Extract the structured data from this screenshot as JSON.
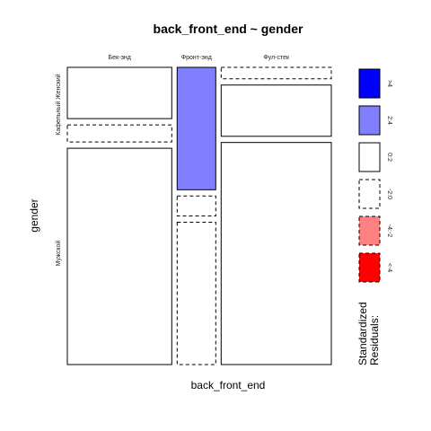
{
  "chart_data": {
    "type": "mosaic",
    "title": "back_front_end ~ gender",
    "xlabel": "back_front_end",
    "ylabel": "gender",
    "columns": [
      {
        "label": "Бек-энд",
        "proportion": 0.365
      },
      {
        "label": "Фронт-энд",
        "proportion": 0.135
      },
      {
        "label": "Фул-стек",
        "proportion": 0.385
      }
    ],
    "rows": [
      {
        "label": "Кафельный Женский"
      },
      {
        "label": "Мужской"
      }
    ],
    "cells": [
      [
        {
          "proportion": 0.18,
          "residual_class": "0:2"
        },
        {
          "proportion": 0.06,
          "residual_class": "-2:0"
        },
        {
          "proportion": 0.76,
          "residual_class": "0:2"
        }
      ],
      [
        {
          "proportion": 0.43,
          "residual_class": "2:4"
        },
        {
          "proportion": 0.07,
          "residual_class": "-2:0"
        },
        {
          "proportion": 0.5,
          "residual_class": "-2:0"
        }
      ],
      [
        {
          "proportion": 0.04,
          "residual_class": "-2:0"
        },
        {
          "proportion": 0.18,
          "residual_class": "0:2"
        },
        {
          "proportion": 0.78,
          "residual_class": "0:2"
        }
      ]
    ],
    "legend": {
      "title_lines": [
        "Standardized",
        "Residuals:"
      ],
      "classes": [
        {
          "label": ">4",
          "fill": "#0000ff",
          "dashed": false
        },
        {
          "label": "2:4",
          "fill": "#8080ff",
          "dashed": false
        },
        {
          "label": "0:2",
          "fill": "#ffffff",
          "dashed": false
        },
        {
          "label": "-2:0",
          "fill": "#ffffff",
          "dashed": true
        },
        {
          "label": "-4:-2",
          "fill": "#ff8080",
          "dashed": true
        },
        {
          "label": "<-4",
          "fill": "#ff0000",
          "dashed": true
        }
      ]
    }
  }
}
